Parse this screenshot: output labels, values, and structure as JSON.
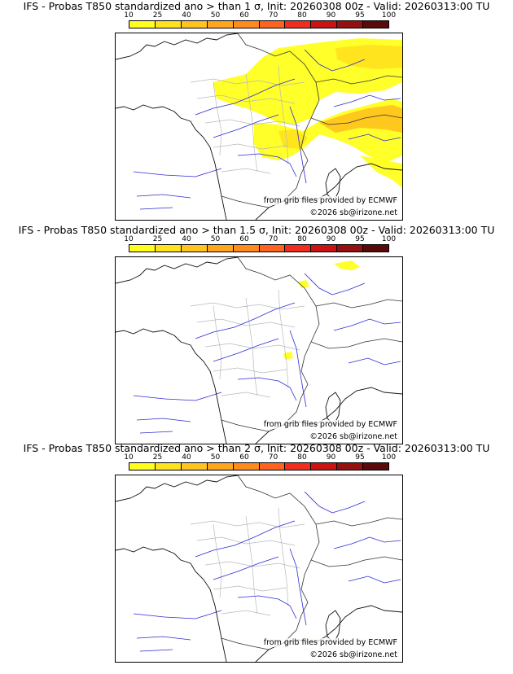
{
  "colorbar": {
    "ticks": [
      "10",
      "25",
      "40",
      "50",
      "60",
      "70",
      "80",
      "90",
      "95",
      "100"
    ],
    "colors": [
      "#ffff1e",
      "#ffe31e",
      "#ffc51e",
      "#ffa51e",
      "#ff8a1e",
      "#ff641e",
      "#f02d1e",
      "#c81414",
      "#961010",
      "#5a0a0a"
    ]
  },
  "panels": [
    {
      "title": "IFS - Probas T850  standardized ano > than 1 σ, Init: 20260308 00z - Valid: 20260313:00 TU",
      "credit_source": "from grib files provided by ECMWF",
      "credit_copyright": "©2026 sb@irizone.net",
      "coverage": "widespread"
    },
    {
      "title": "IFS - Probas T850  standardized ano > than 1.5 σ, Init: 20260308 00z - Valid: 20260313:00 TU",
      "credit_source": "from grib files provided by ECMWF",
      "credit_copyright": "©2026 sb@irizone.net",
      "coverage": "sparse"
    },
    {
      "title": "IFS - Probas T850  standardized ano > than 2 σ, Init: 20260308 00z - Valid: 20260313:00 TU",
      "credit_source": "from grib files provided by ECMWF",
      "credit_copyright": "©2026 sb@irizone.net",
      "coverage": "none"
    }
  ]
}
